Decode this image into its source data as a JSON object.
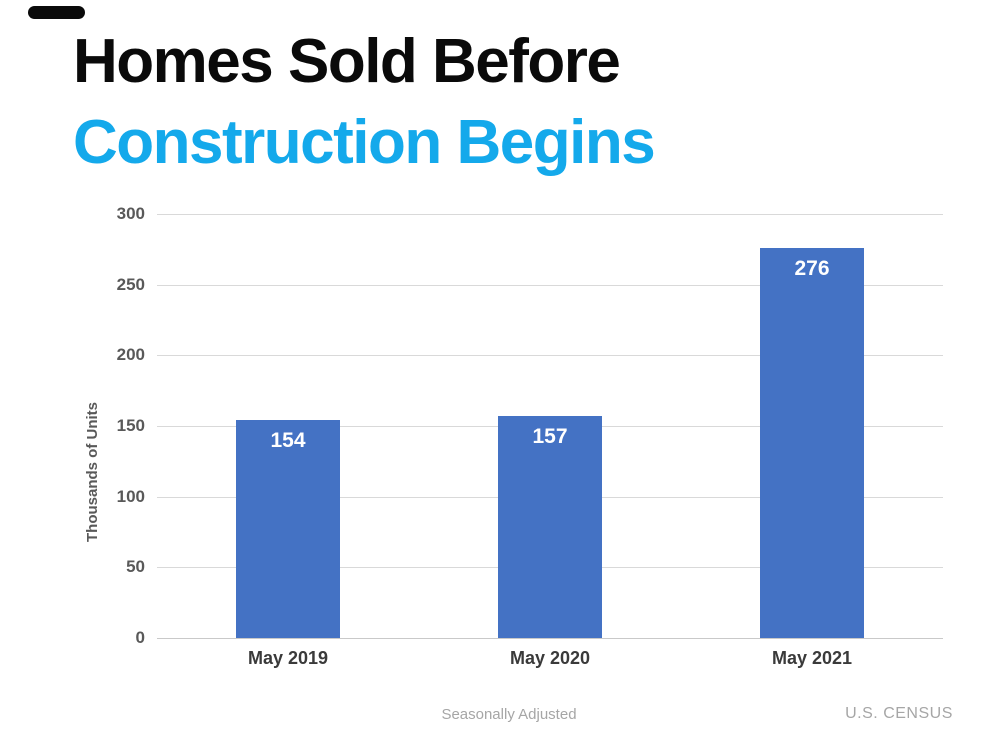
{
  "page": {
    "title_line1": "Homes Sold Before",
    "title_line2": "Construction Begins",
    "accent_color": "#14a9eb"
  },
  "decor": {
    "top_left_bar_color": "#0a0a0a"
  },
  "footer": {
    "note": "Seasonally Adjusted",
    "source": "U.S. CENSUS"
  },
  "chart_data": {
    "type": "bar",
    "title": "",
    "categories": [
      "May 2019",
      "May 2020",
      "May 2021"
    ],
    "values": [
      154,
      157,
      276
    ],
    "xlabel": "",
    "ylabel": "Thousands of Units",
    "ylim": [
      0,
      300
    ],
    "yticks": [
      0,
      50,
      100,
      150,
      200,
      250,
      300
    ],
    "grid": true,
    "legend": false,
    "bar_color": "#4472c4",
    "value_label_color": "#ffffff",
    "axis_text_color": "#595959",
    "gridline_color": "#d9d9d9",
    "axis_line_color": "#c9c9c9"
  }
}
